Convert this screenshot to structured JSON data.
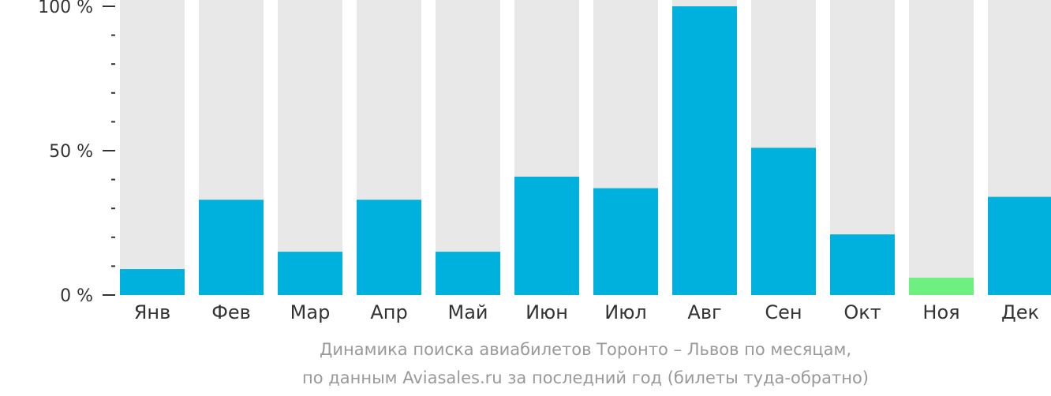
{
  "colors": {
    "bar": "#00b0dd",
    "bar_highlight": "#6ef080",
    "bar_background": "#e8e8e8",
    "axis": "#333333",
    "caption": "#999999"
  },
  "caption": {
    "line1": "Динамика поиска авиабилетов Торонто – Львов по месяцам,",
    "line2": "по данным Aviasales.ru за последний год (билеты туда-обратно)"
  },
  "chart_data": {
    "type": "bar",
    "categories": [
      "Янв",
      "Фев",
      "Мар",
      "Апр",
      "Май",
      "Июн",
      "Июл",
      "Авг",
      "Сен",
      "Окт",
      "Ноя",
      "Дек"
    ],
    "values": [
      9,
      33,
      15,
      33,
      15,
      41,
      37,
      100,
      51,
      21,
      6,
      34
    ],
    "highlight_index": 10,
    "ylim": [
      0,
      100
    ],
    "y_ticks": [
      {
        "value": 0,
        "label": "0 %"
      },
      {
        "value": 50,
        "label": "50 %"
      },
      {
        "value": 100,
        "label": "100 %"
      }
    ],
    "y_minor_step": 10,
    "grid": false,
    "legend": "none"
  }
}
